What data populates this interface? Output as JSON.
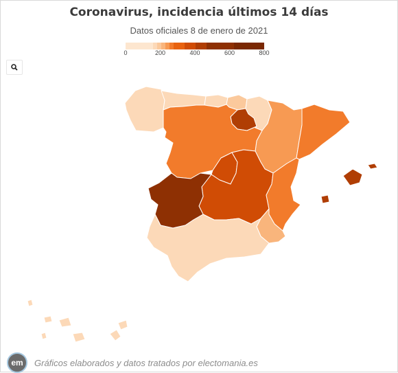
{
  "title": "Coronavirus, incidencia últimos 14 días",
  "subtitle": "Datos oficiales 8 de enero de 2021",
  "legend": {
    "min": 0,
    "max": 800,
    "tick_labels": [
      "0",
      "200",
      "400",
      "600",
      "800"
    ],
    "colors": [
      "#fde6cf",
      "#fcd9b8",
      "#fbc99c",
      "#f9b57c",
      "#f79a53",
      "#f27b2b",
      "#e8620f",
      "#d04c05",
      "#b03e04",
      "#8e3003",
      "#7a2802"
    ]
  },
  "zoom_button": {
    "icon": "search-icon"
  },
  "regions": [
    {
      "name": "Galicia",
      "incidence": 120
    },
    {
      "name": "Asturias",
      "incidence": 120
    },
    {
      "name": "Cantabria",
      "incidence": 120
    },
    {
      "name": "País Vasco",
      "incidence": 180
    },
    {
      "name": "Navarra",
      "incidence": 120
    },
    {
      "name": "La Rioja",
      "incidence": 640
    },
    {
      "name": "Aragón",
      "incidence": 320
    },
    {
      "name": "Cataluña",
      "incidence": 420
    },
    {
      "name": "Castilla y León",
      "incidence": 430
    },
    {
      "name": "Madrid",
      "incidence": 560
    },
    {
      "name": "Castilla-La Mancha",
      "incidence": 560
    },
    {
      "name": "Extremadura",
      "incidence": 720
    },
    {
      "name": "Comunidad Valenciana",
      "incidence": 380
    },
    {
      "name": "Región de Murcia",
      "incidence": 250
    },
    {
      "name": "Andalucía",
      "incidence": 130
    },
    {
      "name": "Islas Baleares",
      "incidence": 620
    },
    {
      "name": "Canarias",
      "incidence": 110
    }
  ],
  "footer": {
    "logo_text": "em",
    "text": "Gráficos elaborados y datos tratados por electomania.es"
  }
}
